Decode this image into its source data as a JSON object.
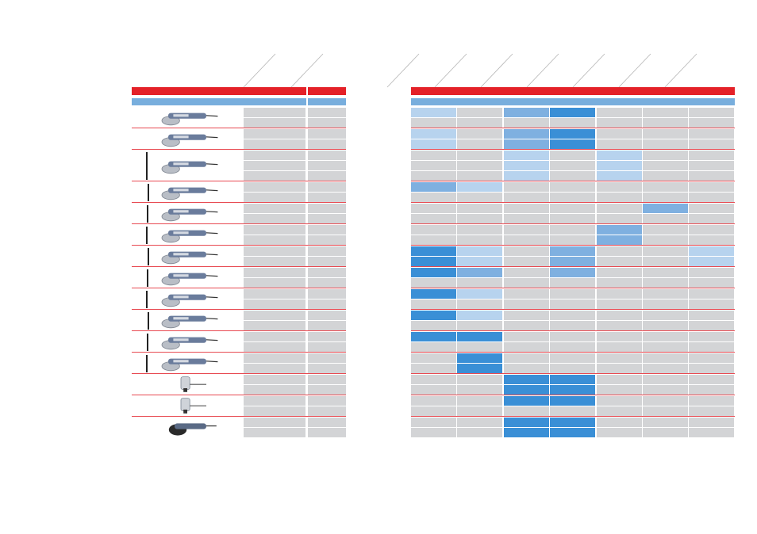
{
  "header": {
    "diagonal_columns": 9
  },
  "palette": {
    "red": "#e42128",
    "blue_band": "#78aedd",
    "grey_cell": "#d3d4d6",
    "light_blue": "#b7d3ee",
    "mid_blue": "#7fb0e0",
    "dark_blue": "#3a8fd6"
  },
  "tools": [
    {
      "icon": "angle-grinder-small-icon",
      "rows": 2
    },
    {
      "icon": "angle-grinder-small-icon",
      "rows": 2
    },
    {
      "icon": "angle-grinder-large-icon",
      "rows": 3
    },
    {
      "icon": "angle-grinder-icon",
      "rows": 2
    },
    {
      "icon": "angle-grinder-guard-icon",
      "rows": 2
    },
    {
      "icon": "angle-grinder-guard-icon",
      "rows": 2
    },
    {
      "icon": "angle-grinder-long-icon",
      "rows": 2
    },
    {
      "icon": "angle-grinder-long-icon",
      "rows": 2
    },
    {
      "icon": "angle-grinder-long-icon",
      "rows": 2
    },
    {
      "icon": "angle-grinder-icon",
      "rows": 2
    },
    {
      "icon": "angle-grinder-icon",
      "rows": 2
    },
    {
      "icon": "angle-grinder-icon",
      "rows": 2
    },
    {
      "icon": "straight-grinder-icon",
      "rows": 2
    },
    {
      "icon": "straight-grinder-icon",
      "rows": 2
    },
    {
      "icon": "polisher-icon",
      "rows": 2
    }
  ],
  "matrix_levels": [
    [
      1,
      0,
      2,
      3,
      0,
      0,
      0
    ],
    [
      0,
      0,
      0,
      0,
      0,
      0,
      0
    ],
    [
      1,
      0,
      2,
      3,
      0,
      0,
      0
    ],
    [
      1,
      0,
      2,
      3,
      0,
      0,
      0
    ],
    [
      0,
      0,
      1,
      0,
      1,
      0,
      0
    ],
    [
      0,
      0,
      1,
      0,
      1,
      0,
      0
    ],
    [
      0,
      0,
      1,
      0,
      1,
      0,
      0
    ],
    [
      2,
      1,
      0,
      0,
      0,
      0,
      0
    ],
    [
      0,
      0,
      0,
      0,
      0,
      0,
      0
    ],
    [
      0,
      0,
      0,
      0,
      0,
      2,
      0
    ],
    [
      0,
      0,
      0,
      0,
      0,
      0,
      0
    ],
    [
      0,
      0,
      0,
      0,
      2,
      0,
      0
    ],
    [
      0,
      0,
      0,
      0,
      2,
      0,
      0
    ],
    [
      3,
      1,
      0,
      2,
      0,
      0,
      1
    ],
    [
      3,
      1,
      0,
      2,
      0,
      0,
      1
    ],
    [
      3,
      2,
      0,
      2,
      0,
      0,
      0
    ],
    [
      0,
      0,
      0,
      0,
      0,
      0,
      0
    ],
    [
      3,
      1,
      0,
      0,
      0,
      0,
      0
    ],
    [
      0,
      0,
      0,
      0,
      0,
      0,
      0
    ],
    [
      3,
      1,
      0,
      0,
      0,
      0,
      0
    ],
    [
      0,
      0,
      0,
      0,
      0,
      0,
      0
    ],
    [
      3,
      3,
      0,
      0,
      0,
      0,
      0
    ],
    [
      0,
      0,
      0,
      0,
      0,
      0,
      0
    ],
    [
      0,
      3,
      0,
      0,
      0,
      0,
      0
    ],
    [
      0,
      3,
      0,
      0,
      0,
      0,
      0
    ],
    [
      0,
      0,
      3,
      3,
      0,
      0,
      0
    ],
    [
      0,
      0,
      3,
      3,
      0,
      0,
      0
    ],
    [
      0,
      0,
      3,
      3,
      0,
      0,
      0
    ],
    [
      0,
      0,
      0,
      0,
      0,
      0,
      0
    ],
    [
      0,
      0,
      3,
      3,
      0,
      0,
      0
    ],
    [
      0,
      0,
      3,
      3,
      0,
      0,
      0
    ]
  ]
}
